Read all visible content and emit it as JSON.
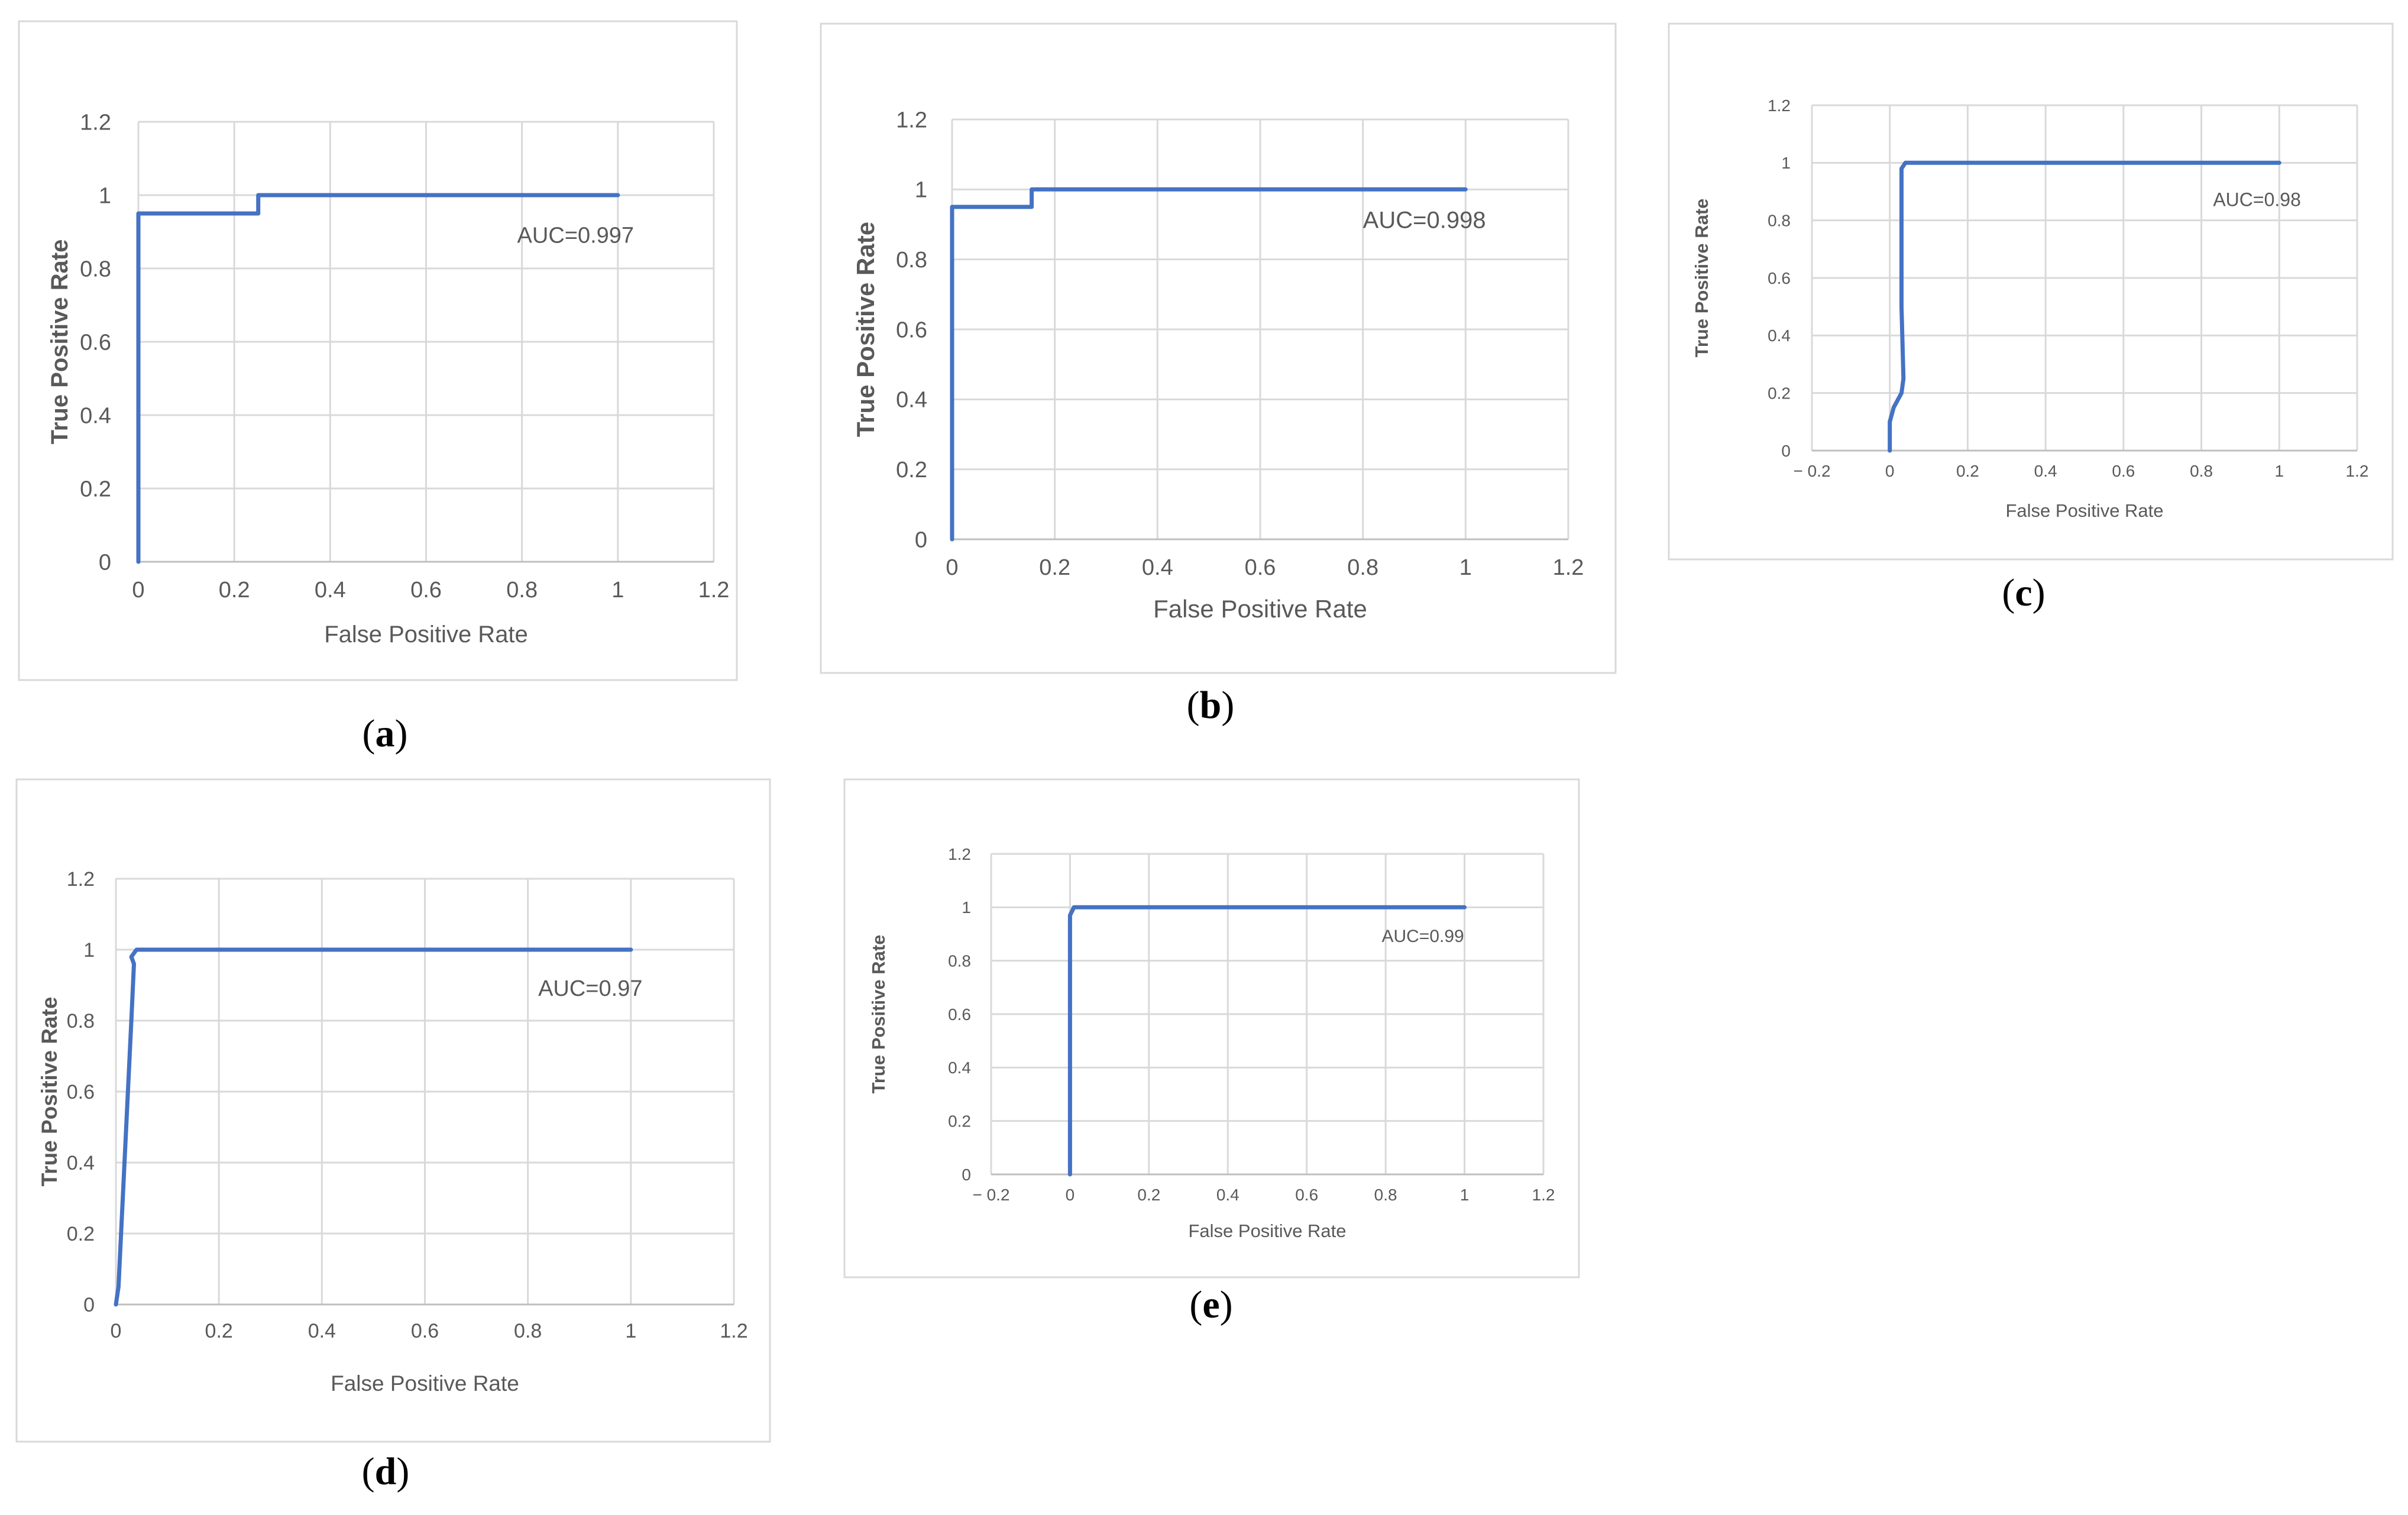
{
  "chart_data": [
    {
      "id": "a",
      "type": "line",
      "caption": {
        "open": "(",
        "letter": "a",
        "close": ")"
      },
      "xlabel": "False Positive Rate",
      "ylabel": "True Positive Rate",
      "xlim": [
        0,
        1.2
      ],
      "ylim": [
        0,
        1.2
      ],
      "xticks": [
        "0",
        "0.2",
        "0.4",
        "0.6",
        "0.8",
        "1",
        "1.2"
      ],
      "yticks": [
        "0",
        "0.2",
        "0.4",
        "0.6",
        "0.8",
        "1",
        "1.2"
      ],
      "grid": true,
      "annotation": "AUC=0.997",
      "series": [
        {
          "color": "#4472c4",
          "x": [
            0,
            0,
            0.25,
            0.25,
            1
          ],
          "y": [
            0,
            0.95,
            0.95,
            1,
            1
          ]
        }
      ]
    },
    {
      "id": "b",
      "type": "line",
      "caption": {
        "open": "(",
        "letter": "b",
        "close": ")"
      },
      "xlabel": "False Positive Rate",
      "ylabel": "True Positive Rate",
      "xlim": [
        0,
        1.2
      ],
      "ylim": [
        0,
        1.2
      ],
      "xticks": [
        "0",
        "0.2",
        "0.4",
        "0.6",
        "0.8",
        "1",
        "1.2"
      ],
      "yticks": [
        "0",
        "0.2",
        "0.4",
        "0.6",
        "0.8",
        "1",
        "1.2"
      ],
      "grid": true,
      "annotation": "AUC=0.998",
      "series": [
        {
          "color": "#4472c4",
          "x": [
            0,
            0,
            0.155,
            0.155,
            1
          ],
          "y": [
            0,
            0.95,
            0.95,
            1,
            1
          ]
        }
      ]
    },
    {
      "id": "c",
      "type": "line",
      "caption": {
        "open": "(",
        "letter": "c",
        "close": ")"
      },
      "xlabel": "False Positive Rate",
      "ylabel": "True Positive Rate",
      "xlim": [
        -0.2,
        1.2
      ],
      "ylim": [
        0,
        1.2
      ],
      "xticks": [
        "− 0.2",
        "0",
        "0.2",
        "0.4",
        "0.6",
        "0.8",
        "1",
        "1.2"
      ],
      "yticks": [
        "0",
        "0.2",
        "0.4",
        "0.6",
        "0.8",
        "1",
        "1.2"
      ],
      "grid": true,
      "annotation": "AUC=0.98",
      "series": [
        {
          "color": "#4472c4",
          "x": [
            0,
            0,
            0.01,
            0.03,
            0.035,
            0.03,
            0.03,
            0.04,
            0.1,
            1
          ],
          "y": [
            0,
            0.1,
            0.15,
            0.2,
            0.25,
            0.5,
            0.98,
            1,
            1,
            1
          ]
        }
      ]
    },
    {
      "id": "d",
      "type": "line",
      "caption": {
        "open": "(",
        "letter": "d",
        "close": ")"
      },
      "xlabel": "False Positive Rate",
      "ylabel": "True Positive Rate",
      "xlim": [
        0,
        1.2
      ],
      "ylim": [
        0,
        1.2
      ],
      "xticks": [
        "0",
        "0.2",
        "0.4",
        "0.6",
        "0.8",
        "1",
        "1.2"
      ],
      "yticks": [
        "0",
        "0.2",
        "0.4",
        "0.6",
        "0.8",
        "1",
        "1.2"
      ],
      "grid": true,
      "annotation": "AUC=0.97",
      "series": [
        {
          "color": "#4472c4",
          "x": [
            0,
            0.005,
            0.03,
            0.035,
            0.03,
            0.04,
            1
          ],
          "y": [
            0,
            0.05,
            0.8,
            0.96,
            0.98,
            1,
            1
          ]
        }
      ]
    },
    {
      "id": "e",
      "type": "line",
      "caption": {
        "open": "(",
        "letter": "e",
        "close": ")"
      },
      "xlabel": "False Positive Rate",
      "ylabel": "True Positive Rate",
      "xlim": [
        -0.2,
        1.2
      ],
      "ylim": [
        0,
        1.2
      ],
      "xticks": [
        "− 0.2",
        "0",
        "0.2",
        "0.4",
        "0.6",
        "0.8",
        "1",
        "1.2"
      ],
      "yticks": [
        "0",
        "0.2",
        "0.4",
        "0.6",
        "0.8",
        "1",
        "1.2"
      ],
      "grid": true,
      "annotation": "AUC=0.99",
      "series": [
        {
          "color": "#4472c4",
          "x": [
            0,
            0,
            0.01,
            0.03,
            1
          ],
          "y": [
            0,
            0.97,
            1,
            1,
            1
          ]
        }
      ]
    }
  ]
}
